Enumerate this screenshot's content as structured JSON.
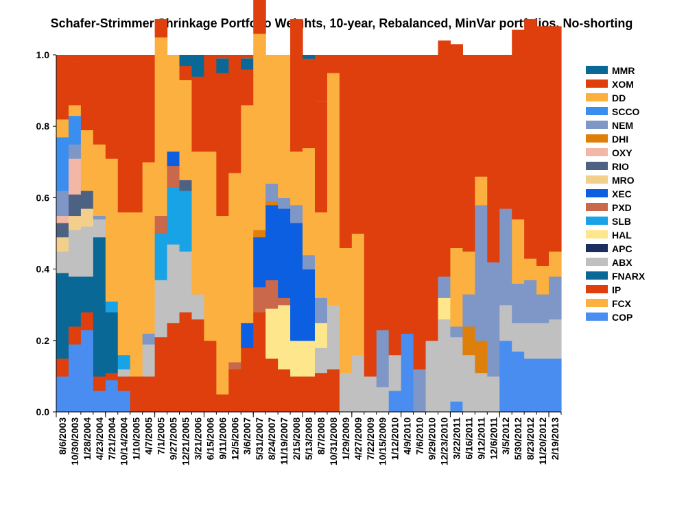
{
  "chart_data": {
    "type": "area",
    "title": "Schafer-Strimmer Shrinkage Portfolio Weights, 10-year, Rebalanced, MinVar portfolios, No-shorting",
    "xlabel": "",
    "ylabel": "",
    "ylim": [
      0,
      1
    ],
    "yticks": [
      "0.0",
      "0.2",
      "0.4",
      "0.6",
      "0.8",
      "1.0"
    ],
    "x_tick_labels": [
      "8/6/2003",
      "10/30/2003",
      "1/28/2004",
      "4/23/2004",
      "7/21/2004",
      "10/14/2004",
      "1/10/2005",
      "4/7/2005",
      "7/1/2005",
      "9/27/2005",
      "12/21/2005",
      "3/21/2006",
      "6/15/2006",
      "9/11/2006",
      "12/5/2006",
      "3/6/2007",
      "5/31/2007",
      "8/24/2007",
      "11/19/2007",
      "2/15/2008",
      "5/13/2008",
      "8/7/2008",
      "10/31/2008",
      "1/29/2009",
      "4/27/2009",
      "7/22/2009",
      "10/15/2009",
      "1/12/2010",
      "4/9/2010",
      "7/6/2010",
      "9/29/2010",
      "12/23/2010",
      "3/22/2011",
      "6/16/2011",
      "9/12/2011",
      "12/6/2011",
      "3/5/2012",
      "5/30/2012",
      "8/23/2012",
      "11/20/2012",
      "2/19/2013"
    ],
    "legend_position": "right",
    "legend": [
      {
        "name": "MMR",
        "color": "#0a6896"
      },
      {
        "name": "XOM",
        "color": "#de3f0c"
      },
      {
        "name": "DD",
        "color": "#fbb040"
      },
      {
        "name": "SCCO",
        "color": "#3a8ef0"
      },
      {
        "name": "NEM",
        "color": "#7e97c7"
      },
      {
        "name": "DHI",
        "color": "#de7f0c"
      },
      {
        "name": "OXY",
        "color": "#f2b7a7"
      },
      {
        "name": "RIO",
        "color": "#4d6283"
      },
      {
        "name": "MRO",
        "color": "#f2d08c"
      },
      {
        "name": "XEC",
        "color": "#0b5fe0"
      },
      {
        "name": "PXD",
        "color": "#c9684b"
      },
      {
        "name": "SLB",
        "color": "#17a3e5"
      },
      {
        "name": "HAL",
        "color": "#fde68c"
      },
      {
        "name": "APC",
        "color": "#1c2d60"
      },
      {
        "name": "ABX",
        "color": "#c0c0c0"
      },
      {
        "name": "FNARX",
        "color": "#0a6896"
      },
      {
        "name": "IP",
        "color": "#de3f0c"
      },
      {
        "name": "FCX",
        "color": "#fbb040"
      },
      {
        "name": "COP",
        "color": "#4a8df0"
      }
    ],
    "stack_bottom_to_top": [
      "COP",
      "FCX",
      "IP",
      "FNARX",
      "ABX",
      "APC",
      "HAL",
      "SLB",
      "PXD",
      "XEC",
      "MRO",
      "RIO",
      "OXY",
      "DHI",
      "NEM",
      "SCCO",
      "DD",
      "XOM",
      "MMR"
    ],
    "periods": 41,
    "series_values": {
      "COP": [
        0.1,
        0.19,
        0.23,
        0.06,
        0.09,
        0.06,
        0,
        0,
        0,
        0,
        0,
        0,
        0,
        0,
        0,
        0,
        0,
        0,
        0,
        0,
        0,
        0,
        0,
        0,
        0,
        0,
        0,
        0.06,
        0.22,
        0,
        0,
        0,
        0.03,
        0,
        0,
        0,
        0.2,
        0.17,
        0.15,
        0.15,
        0.15
      ],
      "FCX": [
        0,
        0,
        0,
        0,
        0,
        0,
        0,
        0,
        0,
        0,
        0,
        0,
        0,
        0,
        0,
        0,
        0,
        0,
        0,
        0,
        0,
        0,
        0,
        0,
        0,
        0,
        0,
        0,
        0,
        0,
        0,
        0,
        0,
        0,
        0,
        0,
        0,
        0,
        0,
        0,
        0
      ],
      "IP": [
        0.05,
        0.05,
        0.05,
        0.04,
        0.02,
        0.04,
        0.1,
        0.1,
        0.21,
        0.25,
        0.28,
        0.26,
        0.2,
        0.05,
        0.12,
        0.18,
        0.28,
        0.15,
        0.12,
        0.1,
        0.1,
        0.11,
        0.12,
        0,
        0,
        0,
        0,
        0,
        0,
        0,
        0,
        0,
        0,
        0,
        0,
        0,
        0,
        0,
        0,
        0,
        0
      ],
      "FNARX": [
        0.24,
        0.14,
        0.1,
        0.39,
        0.17,
        0,
        0,
        0,
        0,
        0,
        0,
        0,
        0,
        0,
        0,
        0,
        0,
        0,
        0,
        0,
        0,
        0,
        0,
        0,
        0,
        0,
        0,
        0,
        0,
        0,
        0,
        0,
        0,
        0,
        0,
        0,
        0,
        0,
        0,
        0,
        0
      ],
      "ABX": [
        0.06,
        0.13,
        0.14,
        0.05,
        0,
        0.02,
        0,
        0.09,
        0.16,
        0.22,
        0.17,
        0.07,
        0,
        0,
        0,
        0,
        0,
        0,
        0,
        0,
        0,
        0.07,
        0.18,
        0.11,
        0.16,
        0.1,
        0.07,
        0.1,
        0,
        0,
        0.2,
        0.26,
        0.18,
        0.16,
        0.11,
        0.1,
        0.1,
        0.08,
        0.1,
        0.1,
        0.11
      ],
      "HAL": [
        0,
        0,
        0,
        0,
        0,
        0,
        0,
        0,
        0,
        0,
        0,
        0,
        0,
        0,
        0,
        0,
        0,
        0.14,
        0.18,
        0.1,
        0.1,
        0.07,
        0,
        0,
        0,
        0,
        0,
        0,
        0,
        0,
        0,
        0.06,
        0,
        0,
        0,
        0,
        0,
        0,
        0,
        0,
        0
      ],
      "SLB": [
        0,
        0,
        0,
        0,
        0.03,
        0.04,
        0,
        0,
        0.13,
        0.16,
        0.17,
        0,
        0,
        0,
        0,
        0,
        0,
        0,
        0,
        0,
        0,
        0,
        0,
        0,
        0,
        0,
        0,
        0,
        0,
        0,
        0,
        0,
        0,
        0,
        0,
        0,
        0,
        0,
        0,
        0,
        0
      ],
      "PXD": [
        0,
        0,
        0,
        0,
        0,
        0,
        0,
        0,
        0.05,
        0.06,
        0,
        0,
        0,
        0,
        0.02,
        0,
        0.07,
        0.08,
        0.02,
        0,
        0,
        0,
        0,
        0,
        0,
        0,
        0,
        0,
        0,
        0,
        0,
        0,
        0,
        0,
        0,
        0,
        0,
        0,
        0,
        0,
        0
      ],
      "XEC": [
        0,
        0,
        0,
        0,
        0,
        0,
        0,
        0,
        0,
        0.04,
        0,
        0,
        0,
        0,
        0,
        0.07,
        0.14,
        0.21,
        0.25,
        0.33,
        0.2,
        0,
        0,
        0,
        0,
        0,
        0,
        0,
        0,
        0,
        0,
        0,
        0,
        0,
        0,
        0,
        0,
        0,
        0,
        0,
        0
      ],
      "MRO": [
        0.04,
        0.04,
        0.05,
        0,
        0,
        0,
        0,
        0,
        0,
        0,
        0,
        0,
        0,
        0,
        0,
        0,
        0,
        0,
        0,
        0,
        0,
        0,
        0,
        0,
        0,
        0,
        0,
        0,
        0,
        0,
        0,
        0,
        0,
        0,
        0,
        0,
        0,
        0,
        0,
        0,
        0
      ],
      "RIO": [
        0.04,
        0.06,
        0.05,
        0,
        0,
        0,
        0,
        0,
        0,
        0,
        0.03,
        0,
        0,
        0,
        0,
        0,
        0,
        0,
        0,
        0,
        0,
        0,
        0,
        0,
        0,
        0,
        0,
        0,
        0,
        0,
        0,
        0,
        0,
        0,
        0,
        0,
        0,
        0,
        0,
        0,
        0
      ],
      "OXY": [
        0.02,
        0.1,
        0,
        0,
        0,
        0,
        0,
        0,
        0,
        0,
        0,
        0,
        0,
        0,
        0,
        0,
        0,
        0,
        0,
        0,
        0,
        0,
        0,
        0,
        0,
        0,
        0,
        0,
        0,
        0,
        0,
        0,
        0,
        0,
        0,
        0,
        0,
        0,
        0,
        0,
        0
      ],
      "DHI": [
        0,
        0,
        0,
        0,
        0,
        0,
        0,
        0,
        0,
        0,
        0,
        0,
        0,
        0,
        0,
        0,
        0.02,
        0.01,
        0,
        0,
        0,
        0,
        0,
        0,
        0,
        0,
        0,
        0,
        0,
        0,
        0,
        0,
        0,
        0.08,
        0.09,
        0,
        0,
        0,
        0,
        0,
        0
      ],
      "NEM": [
        0.07,
        0.04,
        0,
        0.01,
        0,
        0,
        0,
        0.03,
        0,
        0,
        0,
        0,
        0,
        0,
        0,
        0,
        0,
        0.05,
        0.03,
        0.05,
        0.04,
        0.07,
        0,
        0,
        0,
        0,
        0.16,
        0,
        0,
        0.12,
        0,
        0.06,
        0.03,
        0.09,
        0.38,
        0.32,
        0.27,
        0.11,
        0.12,
        0.08,
        0.12
      ],
      "SCCO": [
        0.15,
        0.08,
        0,
        0,
        0,
        0,
        0,
        0,
        0,
        0,
        0,
        0,
        0,
        0,
        0,
        0,
        0,
        0,
        0,
        0,
        0,
        0,
        0,
        0,
        0,
        0,
        0,
        0,
        0,
        0,
        0,
        0,
        0,
        0,
        0,
        0,
        0,
        0,
        0,
        0,
        0
      ],
      "DD": [
        0.05,
        0.03,
        0.17,
        0.2,
        0.4,
        0.4,
        0.46,
        0.48,
        0.5,
        0.27,
        0.28,
        0.4,
        0.53,
        0.5,
        0.53,
        0.61,
        0.55,
        0.36,
        0.4,
        0.15,
        0.3,
        0.24,
        0.65,
        0.35,
        0.34,
        0,
        0,
        0,
        0,
        0,
        0,
        0,
        0.22,
        0.12,
        0.08,
        0,
        0,
        0.18,
        0.06,
        0.08,
        0.07
      ],
      "XOM": [
        0.06,
        0.12,
        0.21,
        0.25,
        0.29,
        0.44,
        0.44,
        0.3,
        0.05,
        0,
        0.04,
        0.21,
        0.27,
        0.4,
        0.33,
        0.1,
        0.21,
        0,
        0,
        0.37,
        0.25,
        0.31,
        0.05,
        0.54,
        0.5,
        0.9,
        0.77,
        0.84,
        0.78,
        0.88,
        0.8,
        0.66,
        0.57,
        0.55,
        0.34,
        0.58,
        0.43,
        0.53,
        0.67,
        0.67,
        0.63
      ],
      "MMR": [
        0,
        0,
        0,
        0,
        0,
        0,
        0,
        0,
        0,
        0,
        0.03,
        0.06,
        0,
        0.04,
        0,
        0.03,
        0.02,
        0,
        0,
        0,
        0.01,
        0,
        0,
        0,
        0,
        0,
        0,
        0,
        0,
        0,
        0,
        0,
        0,
        0,
        0,
        0,
        0,
        0,
        0,
        0,
        0
      ]
    }
  }
}
